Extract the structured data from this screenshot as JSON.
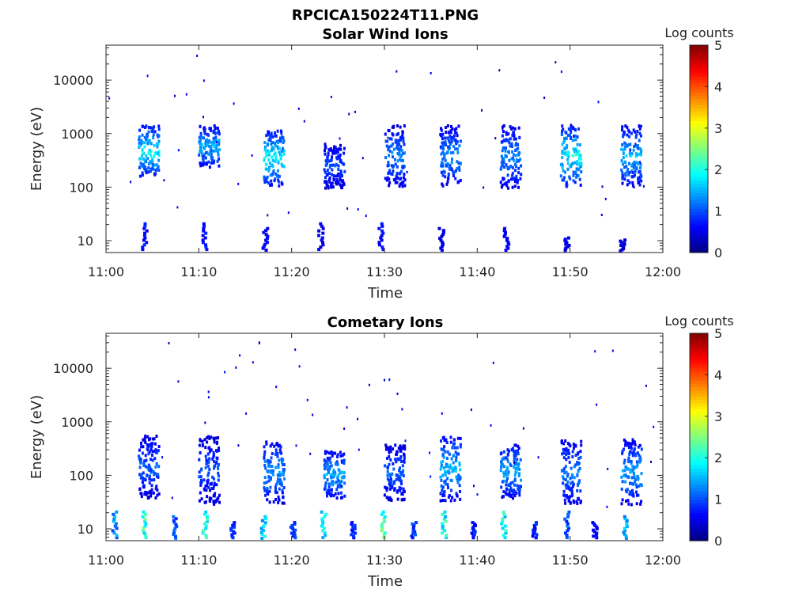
{
  "figure_title": "RPCICA150224T11.PNG",
  "colorbar": {
    "label": "Log counts",
    "ticks": [
      "0",
      "1",
      "2",
      "3",
      "4",
      "5"
    ]
  },
  "chart_data": [
    {
      "type": "heatmap",
      "title": "Solar Wind Ions",
      "xlabel": "Time",
      "ylabel": "Energy (eV)",
      "x_ticks": [
        "11:00",
        "11:10",
        "11:20",
        "11:30",
        "11:40",
        "11:50",
        "12:00"
      ],
      "x_range": [
        "11:00",
        "12:00"
      ],
      "y_ticks": [
        10,
        100,
        1000,
        10000
      ],
      "y_tick_labels": [
        "10",
        "100",
        "1000",
        "10000"
      ],
      "y_scale": "log",
      "y_range": [
        6,
        45000
      ],
      "color_range": [
        0,
        5
      ],
      "clusters": [
        {
          "t": "11:04.5",
          "emin": 170,
          "emax": 1500,
          "peak": 2.2
        },
        {
          "t": "11:11.0",
          "emin": 250,
          "emax": 1500,
          "peak": 1.8
        },
        {
          "t": "11:18.0",
          "emin": 110,
          "emax": 1200,
          "peak": 2.2
        },
        {
          "t": "11:24.5",
          "emin": 100,
          "emax": 700,
          "peak": 1.2
        },
        {
          "t": "11:31.0",
          "emin": 110,
          "emax": 1500,
          "peak": 1.5
        },
        {
          "t": "11:37.0",
          "emin": 110,
          "emax": 1500,
          "peak": 1.6
        },
        {
          "t": "11:43.5",
          "emin": 100,
          "emax": 1500,
          "peak": 1.5
        },
        {
          "t": "11:50.0",
          "emin": 110,
          "emax": 1500,
          "peak": 2.2
        },
        {
          "t": "11:56.5",
          "emin": 110,
          "emax": 1500,
          "peak": 1.8
        }
      ],
      "low_energy_bursts": [
        {
          "t": "11:04.0",
          "emax": 22,
          "peak": 0.9
        },
        {
          "t": "11:10.5",
          "emax": 22,
          "peak": 0.9
        },
        {
          "t": "11:17.0",
          "emax": 18,
          "peak": 0.7
        },
        {
          "t": "11:23.0",
          "emax": 22,
          "peak": 0.7
        },
        {
          "t": "11:29.5",
          "emax": 22,
          "peak": 0.8
        },
        {
          "t": "11:36.0",
          "emax": 18,
          "peak": 0.6
        },
        {
          "t": "11:43.0",
          "emax": 18,
          "peak": 0.7
        },
        {
          "t": "11:49.5",
          "emax": 12,
          "peak": 0.6
        },
        {
          "t": "11:55.5",
          "emax": 11,
          "peak": 0.5
        }
      ]
    },
    {
      "type": "heatmap",
      "title": "Cometary Ions",
      "xlabel": "Time",
      "ylabel": "Energy (eV)",
      "x_ticks": [
        "11:00",
        "11:10",
        "11:20",
        "11:30",
        "11:40",
        "11:50",
        "12:00"
      ],
      "x_range": [
        "11:00",
        "12:00"
      ],
      "y_ticks": [
        10,
        100,
        1000,
        10000
      ],
      "y_tick_labels": [
        "10",
        "100",
        "1000",
        "10000"
      ],
      "y_scale": "log",
      "y_range": [
        6,
        45000
      ],
      "color_range": [
        0,
        5
      ],
      "clusters": [
        {
          "t": "11:04.5",
          "emin": 40,
          "emax": 600,
          "peak": 1.3
        },
        {
          "t": "11:11.0",
          "emin": 30,
          "emax": 600,
          "peak": 1.2
        },
        {
          "t": "11:18.0",
          "emin": 30,
          "emax": 500,
          "peak": 1.6
        },
        {
          "t": "11:24.5",
          "emin": 40,
          "emax": 300,
          "peak": 1.8
        },
        {
          "t": "11:31.0",
          "emin": 35,
          "emax": 400,
          "peak": 1.3
        },
        {
          "t": "11:37.0",
          "emin": 35,
          "emax": 600,
          "peak": 1.8
        },
        {
          "t": "11:43.5",
          "emin": 40,
          "emax": 400,
          "peak": 1.8
        },
        {
          "t": "11:50.0",
          "emin": 30,
          "emax": 500,
          "peak": 1.5
        },
        {
          "t": "11:56.5",
          "emin": 30,
          "emax": 500,
          "peak": 1.7
        }
      ],
      "low_energy_bursts": [
        {
          "t": "11:00.8",
          "emax": 22,
          "peak": 1.6
        },
        {
          "t": "11:04.0",
          "emax": 22,
          "peak": 2.6
        },
        {
          "t": "11:07.2",
          "emax": 18,
          "peak": 1.3
        },
        {
          "t": "11:10.5",
          "emax": 22,
          "peak": 2.5
        },
        {
          "t": "11:13.5",
          "emax": 14,
          "peak": 1.0
        },
        {
          "t": "11:16.8",
          "emax": 18,
          "peak": 2.1
        },
        {
          "t": "11:20.0",
          "emax": 14,
          "peak": 1.1
        },
        {
          "t": "11:23.3",
          "emax": 22,
          "peak": 2.1
        },
        {
          "t": "11:26.5",
          "emax": 14,
          "peak": 0.9
        },
        {
          "t": "11:29.7",
          "emax": 22,
          "peak": 2.6
        },
        {
          "t": "11:33.0",
          "emax": 14,
          "peak": 1.1
        },
        {
          "t": "11:36.3",
          "emax": 22,
          "peak": 2.4
        },
        {
          "t": "11:39.5",
          "emax": 14,
          "peak": 0.9
        },
        {
          "t": "11:42.7",
          "emax": 22,
          "peak": 2.4
        },
        {
          "t": "11:46.0",
          "emax": 14,
          "peak": 0.9
        },
        {
          "t": "11:49.5",
          "emax": 22,
          "peak": 1.3
        },
        {
          "t": "11:52.5",
          "emax": 14,
          "peak": 0.8
        },
        {
          "t": "11:55.8",
          "emax": 18,
          "peak": 1.9
        }
      ]
    }
  ]
}
